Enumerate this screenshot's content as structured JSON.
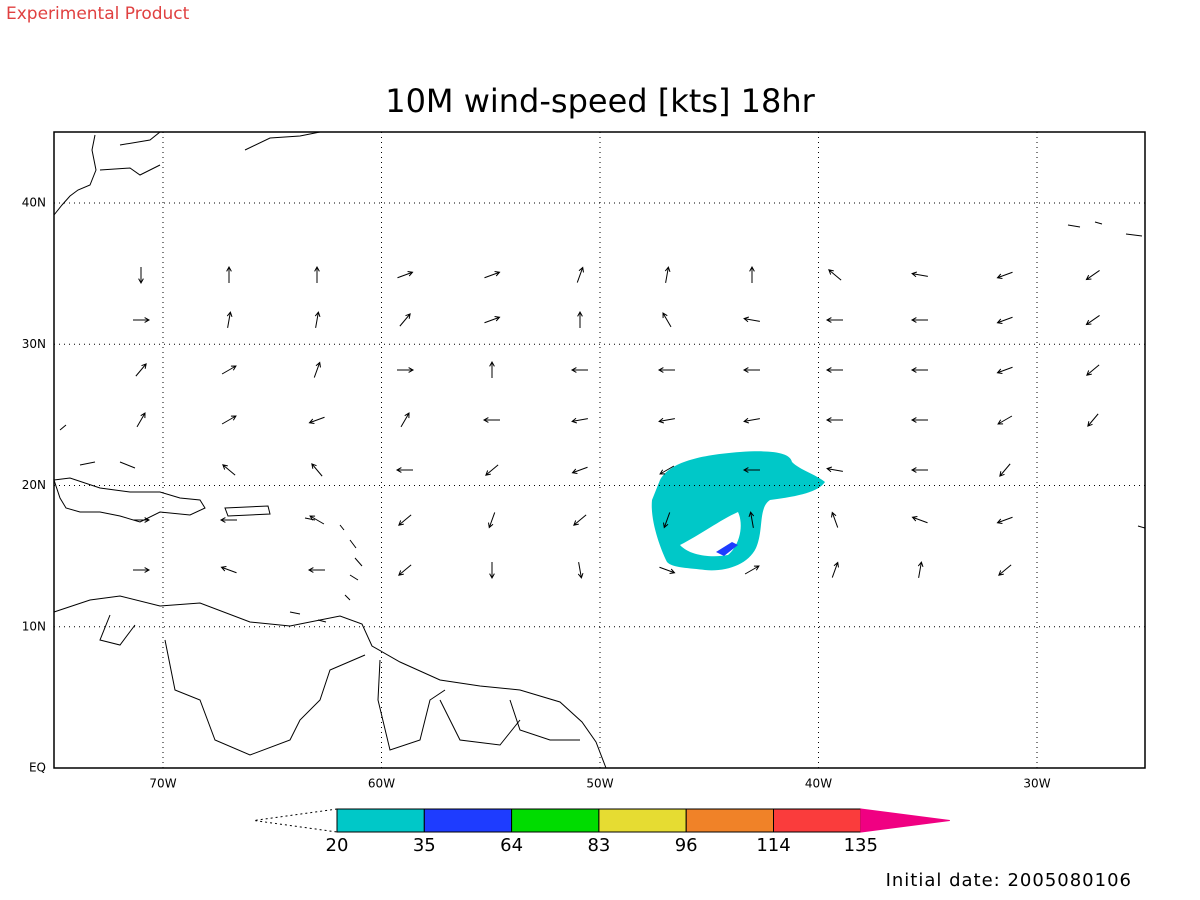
{
  "header": {
    "note": "Experimental Product"
  },
  "map": {
    "title": "10M wind-speed [kts] 18hr",
    "x_ticks": [
      "70W",
      "60W",
      "50W",
      "40W",
      "30W"
    ],
    "y_ticks": [
      "40N",
      "30N",
      "20N",
      "10N",
      "EQ"
    ]
  },
  "colorbar": {
    "levels": [
      {
        "label": "20",
        "color": "#00c8c8"
      },
      {
        "label": "35",
        "color": "#1e3cff"
      },
      {
        "label": "64",
        "color": "#00dc00"
      },
      {
        "label": "83",
        "color": "#e6dc32"
      },
      {
        "label": "96",
        "color": "#f08228"
      },
      {
        "label": "114",
        "color": "#fa3c3c"
      },
      {
        "label": "135",
        "color": "#f00082"
      }
    ]
  },
  "footer": {
    "initial_date": "Initial date: 2005080106"
  }
}
